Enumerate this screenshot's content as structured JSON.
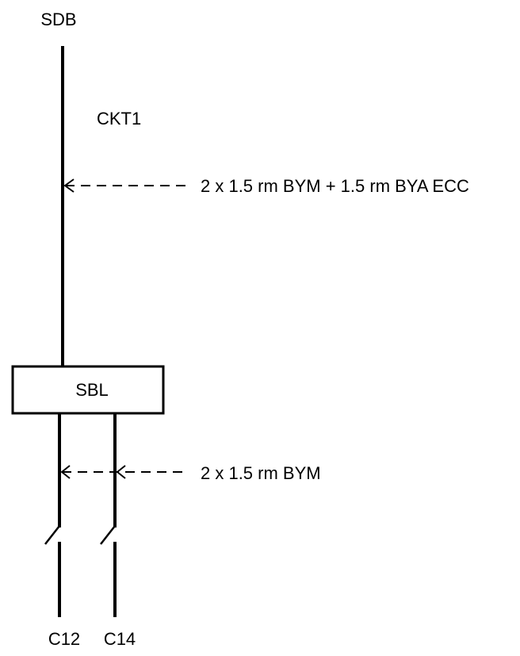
{
  "diagram": {
    "source_label": "SDB",
    "circuit_label": "CKT1",
    "supply_cable": "2 x 1.5 rm BYM + 1.5 rm BYA ECC",
    "box_label": "SBL",
    "outgoing_cable": "2 x 1.5 rm BYM",
    "outputs": [
      "C12",
      "C14"
    ]
  },
  "colors": {
    "line": "#000000",
    "background": "#ffffff"
  }
}
